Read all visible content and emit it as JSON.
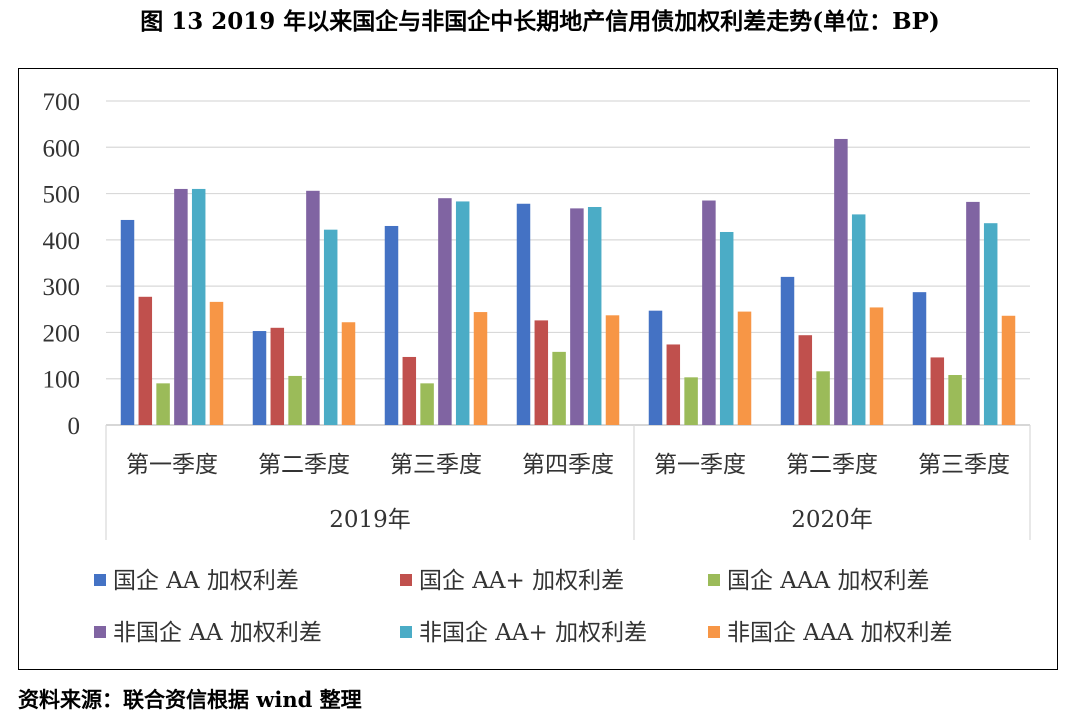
{
  "title": "图 13   2019 年以来国企与非国企中长期地产信用债加权利差走势(单位：BP)",
  "source": "资料来源：联合资信根据 wind 整理",
  "chart_data": {
    "type": "bar",
    "title": "图 13   2019 年以来国企与非国企中长期地产信用债加权利差走势(单位：BP)",
    "ylabel": "",
    "xlabel": "",
    "ylim": [
      0,
      700
    ],
    "yticks": [
      "0",
      "100",
      "200",
      "300",
      "400",
      "500",
      "600",
      "700"
    ],
    "grid": true,
    "legend_position": "bottom",
    "categories": [
      "第一季度",
      "第二季度",
      "第三季度",
      "第四季度",
      "第一季度",
      "第二季度",
      "第三季度"
    ],
    "groups": [
      {
        "label": "2019年",
        "span": 4
      },
      {
        "label": "2020年",
        "span": 3
      }
    ],
    "series": [
      {
        "name": "国企 AA 加权利差",
        "color": "#4472C4",
        "values": [
          443,
          203,
          430,
          478,
          247,
          320,
          287
        ]
      },
      {
        "name": "国企 AA+ 加权利差",
        "color": "#C0504D",
        "values": [
          277,
          210,
          147,
          226,
          174,
          194,
          146
        ]
      },
      {
        "name": "国企 AAA 加权利差",
        "color": "#9BBB59",
        "values": [
          90,
          106,
          90,
          158,
          103,
          116,
          108
        ]
      },
      {
        "name": "非国企 AA 加权利差",
        "color": "#8064A2",
        "values": [
          510,
          506,
          490,
          468,
          485,
          618,
          482
        ]
      },
      {
        "name": "非国企 AA+ 加权利差",
        "color": "#4BACC6",
        "values": [
          510,
          422,
          483,
          471,
          417,
          455,
          436
        ]
      },
      {
        "name": "非国企 AAA 加权利差",
        "color": "#F79646",
        "values": [
          266,
          222,
          244,
          237,
          245,
          254,
          236
        ]
      }
    ]
  }
}
